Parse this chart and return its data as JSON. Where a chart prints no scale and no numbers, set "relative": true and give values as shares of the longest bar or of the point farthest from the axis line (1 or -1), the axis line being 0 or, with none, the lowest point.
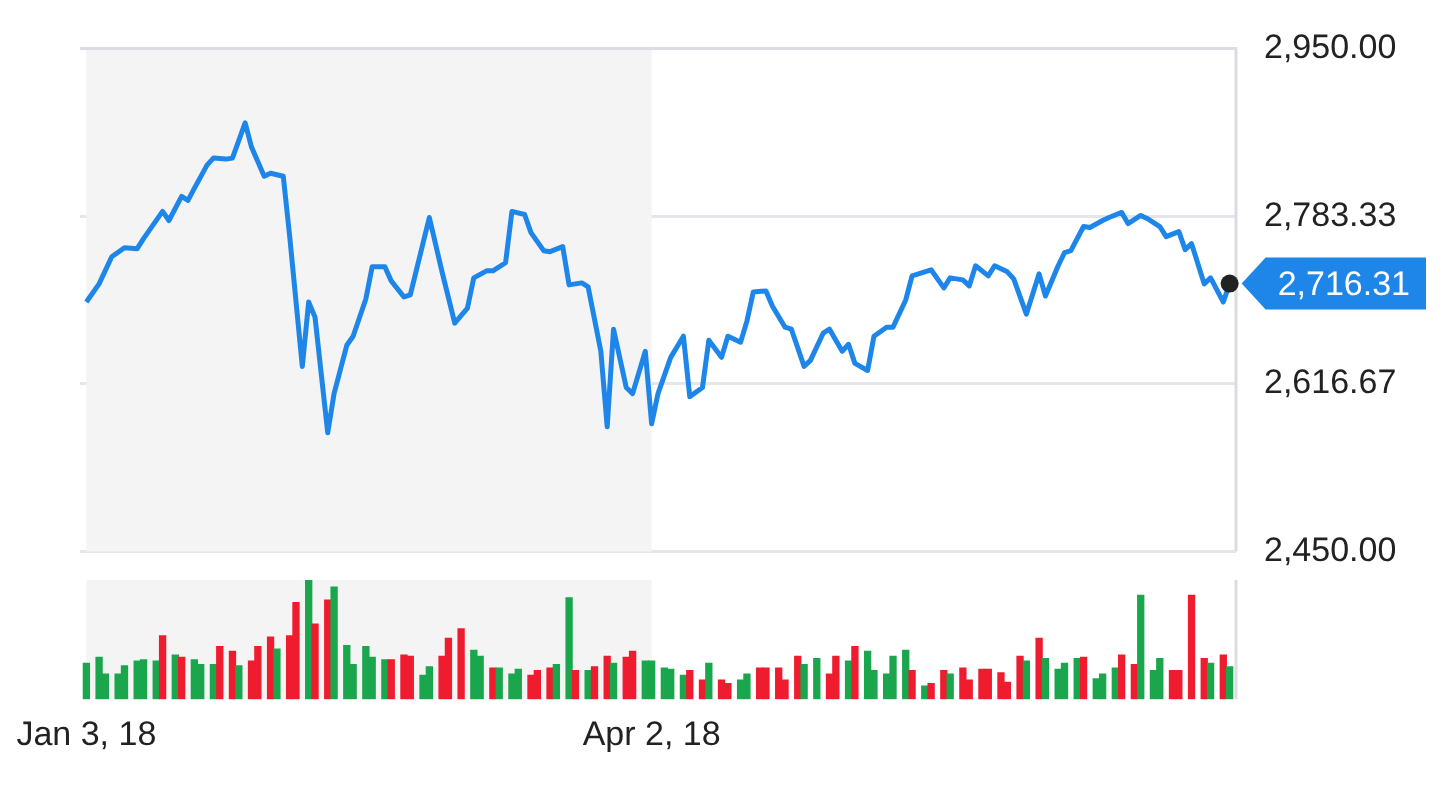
{
  "chart_data": [
    {
      "type": "line",
      "xlim": [
        "2018-01-02",
        "2018-07-03"
      ],
      "ylim": [
        2450,
        2950
      ],
      "yticks": [
        {
          "value": 2450,
          "label": "2,450.00"
        },
        {
          "value": 2616.67,
          "label": "2,616.67"
        },
        {
          "value": 2783.33,
          "label": "2,783.33"
        },
        {
          "value": 2950,
          "label": "2,950.00"
        }
      ],
      "grid": "y",
      "tick_labels": "y",
      "bands": [
        {
          "axis": "x",
          "from": "2018-01-03",
          "to": "2018-04-02",
          "color": "#f4f4f4"
        }
      ],
      "annotations": [
        {
          "text": "2,716.31",
          "x": "2018-07-02",
          "y": 2716.31
        }
      ],
      "series": [
        {
          "color": "#1e86e8",
          "x": [
            "2018-01-03",
            "2018-01-05",
            "2018-01-07",
            "2018-01-09",
            "2018-01-11",
            "2018-01-12",
            "2018-01-15",
            "2018-01-16",
            "2018-01-18",
            "2018-01-19",
            "2018-01-20",
            "2018-01-22",
            "2018-01-23",
            "2018-01-25",
            "2018-01-26",
            "2018-01-28",
            "2018-01-29",
            "2018-01-31",
            "2018-02-01",
            "2018-02-03",
            "2018-02-04",
            "2018-02-06",
            "2018-02-07",
            "2018-02-08",
            "2018-02-10",
            "2018-02-11",
            "2018-02-13",
            "2018-02-14",
            "2018-02-16",
            "2018-02-17",
            "2018-02-19",
            "2018-02-20",
            "2018-02-22",
            "2018-02-23",
            "2018-02-26",
            "2018-02-28",
            "2018-03-02",
            "2018-03-04",
            "2018-03-05",
            "2018-03-07",
            "2018-03-08",
            "2018-03-10",
            "2018-03-11",
            "2018-03-13",
            "2018-03-14",
            "2018-03-16",
            "2018-03-17",
            "2018-03-19",
            "2018-03-20",
            "2018-03-22",
            "2018-03-23",
            "2018-03-25",
            "2018-03-26",
            "2018-03-27",
            "2018-03-29",
            "2018-03-30",
            "2018-04-01",
            "2018-04-02",
            "2018-04-03",
            "2018-04-05",
            "2018-04-07",
            "2018-04-08",
            "2018-04-10",
            "2018-04-11",
            "2018-04-13",
            "2018-04-14",
            "2018-04-16",
            "2018-04-17",
            "2018-04-18",
            "2018-04-20",
            "2018-04-21",
            "2018-04-23",
            "2018-04-24",
            "2018-04-26",
            "2018-04-27",
            "2018-04-29",
            "2018-04-30",
            "2018-05-02",
            "2018-05-03",
            "2018-05-04",
            "2018-05-06",
            "2018-05-07",
            "2018-05-09",
            "2018-05-10",
            "2018-05-12",
            "2018-05-13",
            "2018-05-15",
            "2018-05-16",
            "2018-05-18",
            "2018-05-19",
            "2018-05-21",
            "2018-05-22",
            "2018-05-23",
            "2018-05-25",
            "2018-05-26",
            "2018-05-28",
            "2018-05-29",
            "2018-05-31",
            "2018-06-02",
            "2018-06-03",
            "2018-06-05",
            "2018-06-06",
            "2018-06-07",
            "2018-06-09",
            "2018-06-10",
            "2018-06-12",
            "2018-06-13",
            "2018-06-15",
            "2018-06-16",
            "2018-06-18",
            "2018-06-19",
            "2018-06-21",
            "2018-06-22",
            "2018-06-24",
            "2018-06-25",
            "2018-06-26",
            "2018-06-28",
            "2018-06-29",
            "2018-07-01",
            "2018-07-02"
          ],
          "values": [
            2698,
            2716,
            2743,
            2752,
            2751,
            2761,
            2788,
            2779,
            2803,
            2799,
            2811,
            2834,
            2841,
            2840,
            2841,
            2876,
            2852,
            2823,
            2826,
            2823,
            2764,
            2634,
            2698,
            2683,
            2568,
            2607,
            2655,
            2664,
            2701,
            2733,
            2733,
            2719,
            2703,
            2705,
            2782,
            2728,
            2677,
            2692,
            2722,
            2729,
            2729,
            2737,
            2788,
            2785,
            2767,
            2749,
            2748,
            2753,
            2715,
            2717,
            2713,
            2649,
            2574,
            2671,
            2613,
            2607,
            2649,
            2577,
            2607,
            2643,
            2664,
            2604,
            2613,
            2660,
            2643,
            2664,
            2658,
            2679,
            2708,
            2709,
            2694,
            2673,
            2671,
            2634,
            2640,
            2667,
            2671,
            2649,
            2656,
            2637,
            2630,
            2664,
            2673,
            2673,
            2700,
            2724,
            2728,
            2730,
            2712,
            2722,
            2720,
            2714,
            2734,
            2724,
            2734,
            2728,
            2721,
            2686,
            2726,
            2704,
            2734,
            2747,
            2749,
            2773,
            2772,
            2779,
            2782,
            2787,
            2776,
            2784,
            2781,
            2773,
            2763,
            2768,
            2750,
            2756,
            2716,
            2722,
            2698,
            2716.31
          ]
        }
      ]
    },
    {
      "type": "bar",
      "relative": true,
      "tick_labels": "x",
      "xlim": [
        "2018-01-02",
        "2018-07-03"
      ],
      "xticks": [
        {
          "value": "2018-01-03",
          "label": "Jan 3, 18"
        },
        {
          "value": "2018-04-02",
          "label": "Apr 2, 18"
        }
      ],
      "bands": [
        {
          "axis": "x",
          "from": "2018-01-03",
          "to": "2018-04-02",
          "color": "#f4f4f4"
        }
      ],
      "x": [
        "2018-01-03",
        "2018-01-05",
        "2018-01-06",
        "2018-01-08",
        "2018-01-09",
        "2018-01-11",
        "2018-01-12",
        "2018-01-14",
        "2018-01-15",
        "2018-01-17",
        "2018-01-18",
        "2018-01-20",
        "2018-01-21",
        "2018-01-23",
        "2018-01-24",
        "2018-01-26",
        "2018-01-27",
        "2018-01-29",
        "2018-01-30",
        "2018-02-01",
        "2018-02-02",
        "2018-02-04",
        "2018-02-05",
        "2018-02-07",
        "2018-02-08",
        "2018-02-10",
        "2018-02-11",
        "2018-02-13",
        "2018-02-14",
        "2018-02-16",
        "2018-02-17",
        "2018-02-19",
        "2018-02-20",
        "2018-02-22",
        "2018-02-23",
        "2018-02-25",
        "2018-02-26",
        "2018-02-28",
        "2018-03-01",
        "2018-03-03",
        "2018-03-05",
        "2018-03-06",
        "2018-03-08",
        "2018-03-09",
        "2018-03-11",
        "2018-03-12",
        "2018-03-14",
        "2018-03-15",
        "2018-03-17",
        "2018-03-18",
        "2018-03-20",
        "2018-03-21",
        "2018-03-23",
        "2018-03-24",
        "2018-03-26",
        "2018-03-27",
        "2018-03-29",
        "2018-03-30",
        "2018-04-01",
        "2018-04-02",
        "2018-04-04",
        "2018-04-05",
        "2018-04-07",
        "2018-04-08",
        "2018-04-10",
        "2018-04-11",
        "2018-04-13",
        "2018-04-14",
        "2018-04-16",
        "2018-04-17",
        "2018-04-19",
        "2018-04-20",
        "2018-04-22",
        "2018-04-23",
        "2018-04-25",
        "2018-04-26",
        "2018-04-28",
        "2018-04-30",
        "2018-05-01",
        "2018-05-03",
        "2018-05-04",
        "2018-05-06",
        "2018-05-07",
        "2018-05-09",
        "2018-05-10",
        "2018-05-12",
        "2018-05-13",
        "2018-05-15",
        "2018-05-16",
        "2018-05-18",
        "2018-05-19",
        "2018-05-21",
        "2018-05-22",
        "2018-05-24",
        "2018-05-25",
        "2018-05-27",
        "2018-05-28",
        "2018-05-30",
        "2018-05-31",
        "2018-06-02",
        "2018-06-03",
        "2018-06-05",
        "2018-06-06",
        "2018-06-08",
        "2018-06-09",
        "2018-06-11",
        "2018-06-12",
        "2018-06-14",
        "2018-06-15",
        "2018-06-17",
        "2018-06-18",
        "2018-06-20",
        "2018-06-21",
        "2018-06-23",
        "2018-06-24",
        "2018-06-26",
        "2018-06-28",
        "2018-06-29",
        "2018-07-01",
        "2018-07-02"
      ],
      "values": [
        0.3,
        0.35,
        0.21,
        0.21,
        0.28,
        0.32,
        0.33,
        0.32,
        0.53,
        0.37,
        0.35,
        0.33,
        0.29,
        0.29,
        0.44,
        0.4,
        0.28,
        0.32,
        0.44,
        0.52,
        0.42,
        0.53,
        0.81,
        1,
        0.63,
        0.83,
        0.94,
        0.45,
        0.29,
        0.44,
        0.35,
        0.33,
        0.33,
        0.37,
        0.36,
        0.2,
        0.27,
        0.36,
        0.51,
        0.59,
        0.41,
        0.36,
        0.26,
        0.26,
        0.21,
        0.25,
        0.2,
        0.24,
        0.26,
        0.29,
        0.85,
        0.24,
        0.24,
        0.27,
        0.36,
        0.3,
        0.35,
        0.4,
        0.32,
        0.32,
        0.26,
        0.25,
        0.2,
        0.24,
        0.16,
        0.3,
        0.16,
        0.13,
        0.16,
        0.21,
        0.26,
        0.26,
        0.26,
        0.16,
        0.36,
        0.29,
        0.34,
        0.21,
        0.36,
        0.32,
        0.44,
        0.4,
        0.24,
        0.21,
        0.36,
        0.41,
        0.24,
        0.11,
        0.13,
        0.24,
        0.21,
        0.26,
        0.16,
        0.25,
        0.25,
        0.22,
        0.14,
        0.36,
        0.32,
        0.51,
        0.34,
        0.25,
        0.3,
        0.34,
        0.35,
        0.17,
        0.21,
        0.26,
        0.37,
        0.29,
        0.87,
        0.24,
        0.34,
        0.24,
        0.24,
        0.87,
        0.34,
        0.3,
        0.37,
        0.27
      ],
      "colors": [
        "#1aa64c",
        "#1aa64c",
        "#1aa64c",
        "#1aa64c",
        "#1aa64c",
        "#1aa64c",
        "#1aa64c",
        "#1aa64c",
        "#ee1c2e",
        "#1aa64c",
        "#ee1c2e",
        "#1aa64c",
        "#1aa64c",
        "#1aa64c",
        "#ee1c2e",
        "#ee1c2e",
        "#1aa64c",
        "#ee1c2e",
        "#ee1c2e",
        "#ee1c2e",
        "#1aa64c",
        "#ee1c2e",
        "#ee1c2e",
        "#1aa64c",
        "#ee1c2e",
        "#ee1c2e",
        "#1aa64c",
        "#1aa64c",
        "#1aa64c",
        "#1aa64c",
        "#1aa64c",
        "#1aa64c",
        "#ee1c2e",
        "#ee1c2e",
        "#ee1c2e",
        "#1aa64c",
        "#1aa64c",
        "#ee1c2e",
        "#ee1c2e",
        "#ee1c2e",
        "#1aa64c",
        "#1aa64c",
        "#ee1c2e",
        "#1aa64c",
        "#1aa64c",
        "#1aa64c",
        "#ee1c2e",
        "#ee1c2e",
        "#ee1c2e",
        "#1aa64c",
        "#1aa64c",
        "#ee1c2e",
        "#1aa64c",
        "#ee1c2e",
        "#ee1c2e",
        "#1aa64c",
        "#ee1c2e",
        "#ee1c2e",
        "#1aa64c",
        "#1aa64c",
        "#1aa64c",
        "#1aa64c",
        "#1aa64c",
        "#ee1c2e",
        "#ee1c2e",
        "#1aa64c",
        "#ee1c2e",
        "#ee1c2e",
        "#1aa64c",
        "#1aa64c",
        "#ee1c2e",
        "#ee1c2e",
        "#ee1c2e",
        "#ee1c2e",
        "#ee1c2e",
        "#1aa64c",
        "#1aa64c",
        "#ee1c2e",
        "#ee1c2e",
        "#1aa64c",
        "#ee1c2e",
        "#1aa64c",
        "#1aa64c",
        "#1aa64c",
        "#1aa64c",
        "#1aa64c",
        "#ee1c2e",
        "#1aa64c",
        "#ee1c2e",
        "#ee1c2e",
        "#1aa64c",
        "#ee1c2e",
        "#ee1c2e",
        "#ee1c2e",
        "#ee1c2e",
        "#ee1c2e",
        "#ee1c2e",
        "#ee1c2e",
        "#1aa64c",
        "#ee1c2e",
        "#1aa64c",
        "#1aa64c",
        "#1aa64c",
        "#1aa64c",
        "#ee1c2e",
        "#1aa64c",
        "#1aa64c",
        "#1aa64c",
        "#ee1c2e",
        "#ee1c2e",
        "#1aa64c",
        "#1aa64c",
        "#1aa64c",
        "#ee1c2e",
        "#ee1c2e",
        "#ee1c2e",
        "#ee1c2e",
        "#1aa64c",
        "#ee1c2e",
        "#1aa64c"
      ]
    }
  ]
}
